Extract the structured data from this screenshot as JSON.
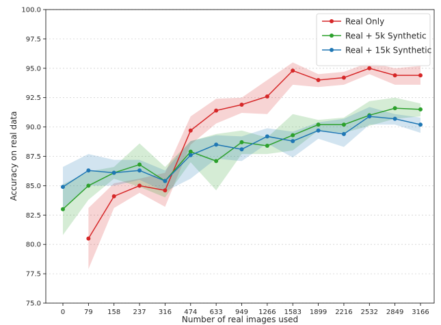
{
  "chart_data": {
    "type": "line",
    "xlabel": "Number of real images used",
    "ylabel": "Accuracy on real data",
    "categories": [
      "0",
      "79",
      "158",
      "237",
      "316",
      "474",
      "633",
      "949",
      "1266",
      "1583",
      "1899",
      "2216",
      "2532",
      "2849",
      "3166"
    ],
    "ylim": [
      75.0,
      100.0
    ],
    "yticks": [
      75.0,
      77.5,
      80.0,
      82.5,
      85.0,
      87.5,
      90.0,
      92.5,
      95.0,
      97.5,
      100.0
    ],
    "grid": true,
    "legend_position": "top-right",
    "series": [
      {
        "name": "Real Only",
        "color": "#d62728",
        "values": [
          null,
          80.5,
          84.1,
          85.0,
          84.6,
          89.7,
          91.4,
          91.9,
          92.6,
          94.8,
          94.0,
          94.2,
          95.0,
          94.4,
          94.4
        ],
        "lower": [
          null,
          77.9,
          83.1,
          84.4,
          83.2,
          88.5,
          90.3,
          91.2,
          91.1,
          93.6,
          93.4,
          93.6,
          94.5,
          93.6,
          93.6
        ],
        "upper": [
          null,
          83.1,
          85.2,
          85.6,
          86.1,
          90.9,
          92.4,
          92.5,
          94.0,
          95.5,
          94.5,
          94.7,
          95.5,
          95.0,
          95.2
        ]
      },
      {
        "name": "Real + 5k Synthetic",
        "color": "#2ca02c",
        "values": [
          83.0,
          85.0,
          86.1,
          86.8,
          85.4,
          87.9,
          87.1,
          88.7,
          88.4,
          89.3,
          90.2,
          90.2,
          91.0,
          91.6,
          91.5
        ],
        "lower": [
          80.8,
          83.8,
          85.6,
          84.9,
          84.0,
          87.0,
          84.6,
          87.7,
          87.7,
          88.0,
          89.7,
          89.5,
          90.1,
          90.7,
          90.9
        ],
        "upper": [
          85.1,
          86.2,
          86.6,
          88.6,
          86.6,
          88.8,
          89.4,
          89.7,
          89.1,
          91.1,
          90.6,
          90.8,
          92.2,
          92.5,
          92.0
        ]
      },
      {
        "name": "Real + 15k Synthetic",
        "color": "#1f77b4",
        "values": [
          84.9,
          86.3,
          86.1,
          86.3,
          85.4,
          87.6,
          88.5,
          88.1,
          89.2,
          88.8,
          89.7,
          89.4,
          90.9,
          90.7,
          90.2
        ],
        "lower": [
          83.1,
          85.0,
          85.0,
          85.5,
          84.5,
          85.6,
          87.3,
          87.1,
          88.6,
          87.4,
          89.0,
          88.3,
          90.2,
          90.2,
          89.5
        ],
        "upper": [
          86.6,
          87.7,
          87.2,
          87.2,
          86.3,
          88.8,
          89.3,
          89.2,
          89.9,
          89.6,
          90.4,
          90.7,
          91.7,
          91.1,
          90.8
        ]
      }
    ]
  }
}
